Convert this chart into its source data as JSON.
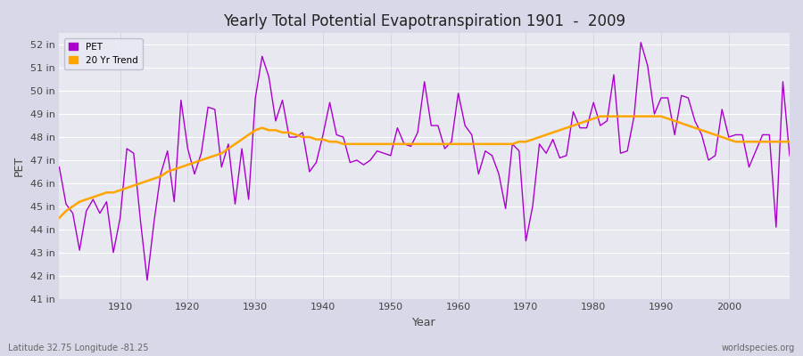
{
  "title": "Yearly Total Potential Evapotranspiration 1901  -  2009",
  "xlabel": "Year",
  "ylabel": "PET",
  "subtitle_left": "Latitude 32.75 Longitude -81.25",
  "subtitle_right": "worldspecies.org",
  "pet_color": "#AA00CC",
  "trend_color": "#FFA500",
  "fig_bg_color": "#D8D8E8",
  "plot_bg_color": "#E8E8F0",
  "grid_color_h": "#FFFFFF",
  "grid_color_v": "#CCCCDD",
  "ylim_min": 41,
  "ylim_max": 52.5,
  "xlim_min": 1901,
  "xlim_max": 2009,
  "yticks": [
    41,
    42,
    43,
    44,
    45,
    46,
    47,
    48,
    49,
    50,
    51,
    52
  ],
  "ytick_labels": [
    "41 in",
    "42 in",
    "43 in",
    "44 in",
    "45 in",
    "46 in",
    "47 in",
    "48 in",
    "49 in",
    "50 in",
    "51 in",
    "52 in"
  ],
  "xticks": [
    1910,
    1920,
    1930,
    1940,
    1950,
    1960,
    1970,
    1980,
    1990,
    2000
  ],
  "years": [
    1901,
    1902,
    1903,
    1904,
    1905,
    1906,
    1907,
    1908,
    1909,
    1910,
    1911,
    1912,
    1913,
    1914,
    1915,
    1916,
    1917,
    1918,
    1919,
    1920,
    1921,
    1922,
    1923,
    1924,
    1925,
    1926,
    1927,
    1928,
    1929,
    1930,
    1931,
    1932,
    1933,
    1934,
    1935,
    1936,
    1937,
    1938,
    1939,
    1940,
    1941,
    1942,
    1943,
    1944,
    1945,
    1946,
    1947,
    1948,
    1949,
    1950,
    1951,
    1952,
    1953,
    1954,
    1955,
    1956,
    1957,
    1958,
    1959,
    1960,
    1961,
    1962,
    1963,
    1964,
    1965,
    1966,
    1967,
    1968,
    1969,
    1970,
    1971,
    1972,
    1973,
    1974,
    1975,
    1976,
    1977,
    1978,
    1979,
    1980,
    1981,
    1982,
    1983,
    1984,
    1985,
    1986,
    1987,
    1988,
    1989,
    1990,
    1991,
    1992,
    1993,
    1994,
    1995,
    1996,
    1997,
    1998,
    1999,
    2000,
    2001,
    2002,
    2003,
    2004,
    2005,
    2006,
    2007,
    2008,
    2009
  ],
  "pet_values": [
    46.7,
    45.1,
    44.7,
    43.1,
    44.8,
    45.3,
    44.7,
    45.2,
    43.0,
    44.5,
    47.5,
    47.3,
    44.4,
    41.8,
    44.3,
    46.4,
    47.4,
    45.2,
    49.6,
    47.5,
    46.4,
    47.3,
    49.3,
    49.2,
    46.7,
    47.7,
    45.1,
    47.5,
    45.3,
    49.7,
    51.5,
    50.6,
    48.7,
    49.6,
    48.0,
    48.0,
    48.2,
    46.5,
    46.9,
    48.1,
    49.5,
    48.1,
    48.0,
    46.9,
    47.0,
    46.8,
    47.0,
    47.4,
    47.3,
    47.2,
    48.4,
    47.7,
    47.6,
    48.2,
    50.4,
    48.5,
    48.5,
    47.5,
    47.8,
    49.9,
    48.5,
    48.1,
    46.4,
    47.4,
    47.2,
    46.4,
    44.9,
    47.7,
    47.4,
    43.5,
    45.0,
    47.7,
    47.3,
    47.9,
    47.1,
    47.2,
    49.1,
    48.4,
    48.4,
    49.5,
    48.5,
    48.7,
    50.7,
    47.3,
    47.4,
    48.9,
    52.1,
    51.1,
    49.0,
    49.7,
    49.7,
    48.1,
    49.8,
    49.7,
    48.7,
    48.1,
    47.0,
    47.2,
    49.2,
    48.0,
    48.1,
    48.1,
    46.7,
    47.4,
    48.1,
    48.1,
    44.1,
    50.4,
    47.2
  ],
  "trend_years": [
    1901,
    1902,
    1903,
    1904,
    1905,
    1906,
    1907,
    1908,
    1909,
    1910,
    1911,
    1912,
    1913,
    1914,
    1915,
    1916,
    1917,
    1918,
    1919,
    1920,
    1921,
    1922,
    1923,
    1924,
    1925,
    1926,
    1927,
    1928,
    1929,
    1930,
    1931,
    1932,
    1933,
    1934,
    1935,
    1936,
    1937,
    1938,
    1939,
    1940,
    1941,
    1942,
    1943,
    1944,
    1945,
    1946,
    1947,
    1948,
    1949,
    1950,
    1951,
    1952,
    1953,
    1954,
    1955,
    1956,
    1957,
    1958,
    1959,
    1960,
    1961,
    1962,
    1963,
    1964,
    1965,
    1966,
    1967,
    1968,
    1969,
    1970,
    1971,
    1972,
    1973,
    1974,
    1975,
    1976,
    1977,
    1978,
    1979,
    1980,
    1981,
    1982,
    1983,
    1984,
    1985,
    1986,
    1987,
    1988,
    1989,
    1990,
    1991,
    1992,
    1993,
    1994,
    1995,
    1996,
    1997,
    1998,
    1999,
    2000,
    2001,
    2002,
    2003,
    2004,
    2005,
    2006,
    2007,
    2008,
    2009
  ],
  "trend_values": [
    44.5,
    44.8,
    45.0,
    45.2,
    45.3,
    45.4,
    45.5,
    45.6,
    45.6,
    45.7,
    45.8,
    45.9,
    46.0,
    46.1,
    46.2,
    46.3,
    46.5,
    46.6,
    46.7,
    46.8,
    46.9,
    47.0,
    47.1,
    47.2,
    47.3,
    47.5,
    47.7,
    47.9,
    48.1,
    48.3,
    48.4,
    48.3,
    48.3,
    48.2,
    48.2,
    48.1,
    48.0,
    48.0,
    47.9,
    47.9,
    47.8,
    47.8,
    47.7,
    47.7,
    47.7,
    47.7,
    47.7,
    47.7,
    47.7,
    47.7,
    47.7,
    47.7,
    47.7,
    47.7,
    47.7,
    47.7,
    47.7,
    47.7,
    47.7,
    47.7,
    47.7,
    47.7,
    47.7,
    47.7,
    47.7,
    47.7,
    47.7,
    47.7,
    47.8,
    47.8,
    47.9,
    48.0,
    48.1,
    48.2,
    48.3,
    48.4,
    48.5,
    48.6,
    48.7,
    48.8,
    48.9,
    48.9,
    48.9,
    48.9,
    48.9,
    48.9,
    48.9,
    48.9,
    48.9,
    48.9,
    48.8,
    48.7,
    48.6,
    48.5,
    48.4,
    48.3,
    48.2,
    48.1,
    48.0,
    47.9,
    47.8,
    47.8,
    47.8,
    47.8,
    47.8,
    47.8,
    47.8,
    47.8,
    47.8
  ]
}
